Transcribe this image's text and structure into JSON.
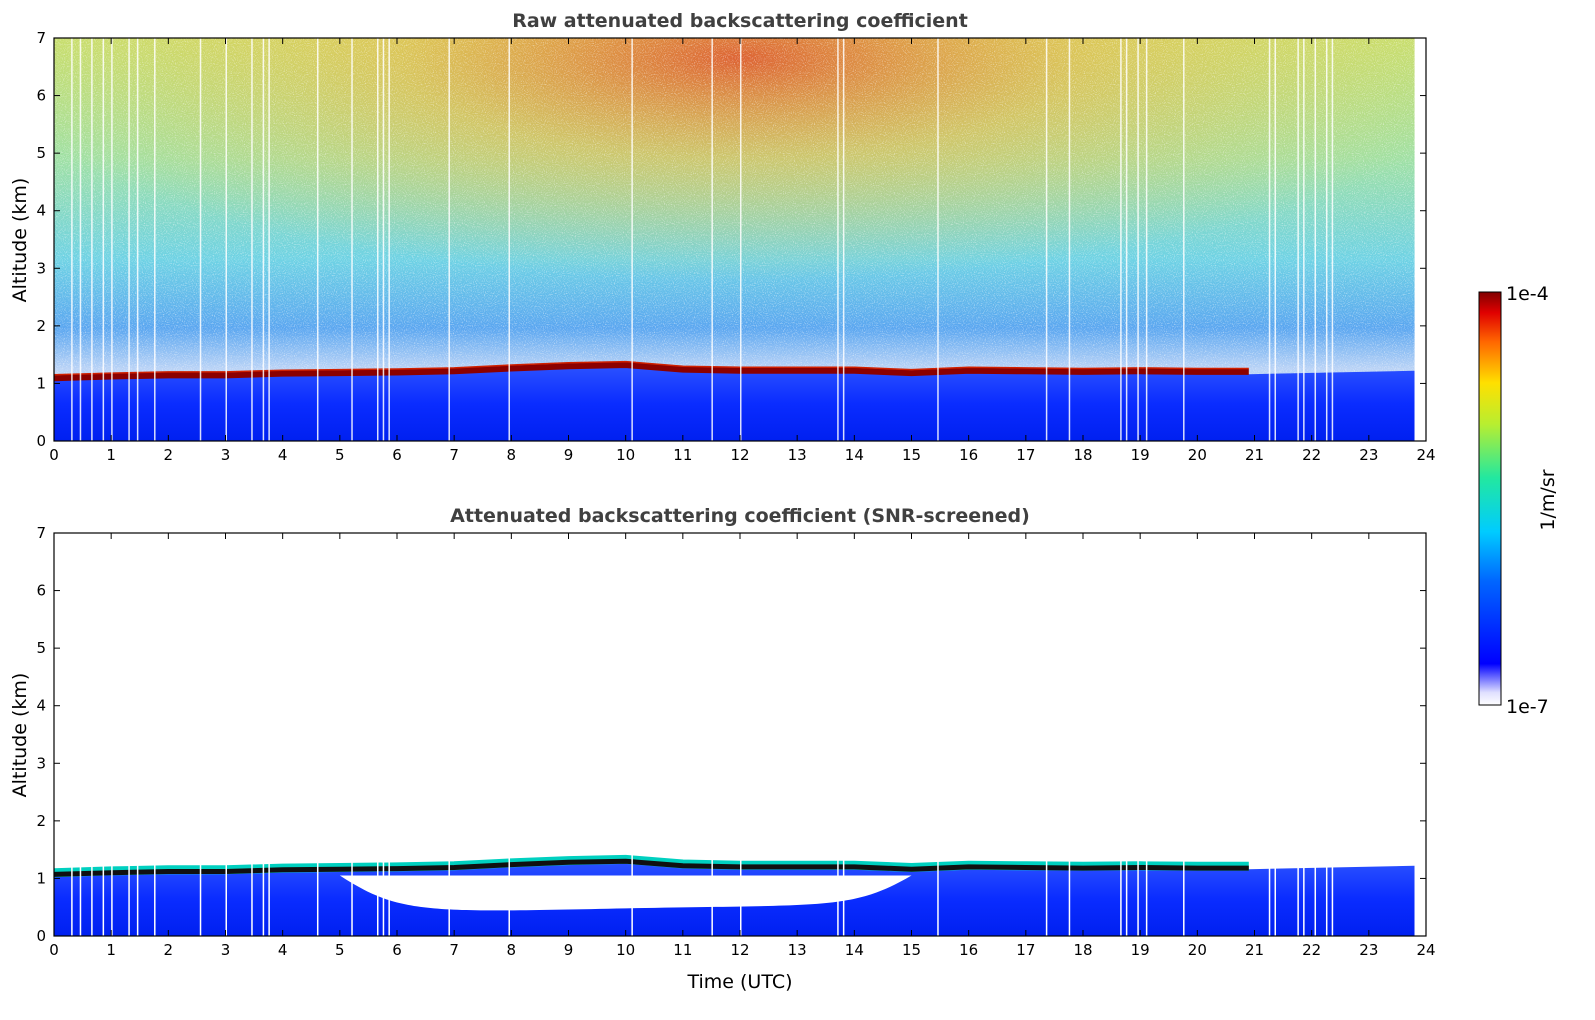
{
  "chart_data": [
    {
      "type": "heatmap",
      "title": "Raw attenuated backscattering coefficient",
      "xlabel": "",
      "ylabel": "Altitude (km)",
      "xlim": [
        0,
        24
      ],
      "ylim": [
        0,
        7
      ],
      "x_ticks": [
        "0",
        "1",
        "2",
        "3",
        "4",
        "5",
        "6",
        "7",
        "8",
        "9",
        "10",
        "11",
        "12",
        "13",
        "14",
        "15",
        "16",
        "17",
        "18",
        "19",
        "20",
        "21",
        "22",
        "23",
        "24"
      ],
      "y_ticks": [
        "0",
        "1",
        "2",
        "3",
        "4",
        "5",
        "6",
        "7"
      ],
      "data_end_time": 23.8,
      "cloud_layer_end_time": 20.9,
      "cloud_base_altitude_km": [
        [
          0,
          1.05
        ],
        [
          1,
          1.08
        ],
        [
          2,
          1.1
        ],
        [
          3,
          1.1
        ],
        [
          4,
          1.13
        ],
        [
          5,
          1.14
        ],
        [
          6,
          1.15
        ],
        [
          7,
          1.17
        ],
        [
          8,
          1.22
        ],
        [
          9,
          1.26
        ],
        [
          10,
          1.28
        ],
        [
          11,
          1.2
        ],
        [
          12,
          1.18
        ],
        [
          13,
          1.18
        ],
        [
          14,
          1.18
        ],
        [
          15,
          1.14
        ],
        [
          16,
          1.18
        ],
        [
          17,
          1.17
        ],
        [
          18,
          1.16
        ],
        [
          19,
          1.17
        ],
        [
          20,
          1.16
        ],
        [
          20.9,
          1.16
        ]
      ],
      "missing_profile_times": [
        0.3,
        0.45,
        0.65,
        0.85,
        1.0,
        1.3,
        1.45,
        1.75,
        2.55,
        3.0,
        3.45,
        3.65,
        3.75,
        4.6,
        5.2,
        5.65,
        5.75,
        5.85,
        6.9,
        7.95,
        10.1,
        11.5,
        12.0,
        13.7,
        13.8,
        15.45,
        17.35,
        17.75,
        18.65,
        18.75,
        18.95,
        19.1,
        19.75,
        21.25,
        21.35,
        21.75,
        21.85,
        22.05,
        22.25,
        22.35
      ],
      "colorbar_label": "1/m/sr",
      "colorbar_min_label": "1e-7",
      "colorbar_max_label": "1e-4",
      "colorscale": "jet",
      "scale": "log"
    },
    {
      "type": "heatmap",
      "title": "Attenuated backscattering coefficient (SNR-screened)",
      "xlabel": "Time (UTC)",
      "ylabel": "Altitude (km)",
      "xlim": [
        0,
        24
      ],
      "ylim": [
        0,
        7
      ],
      "x_ticks": [
        "0",
        "1",
        "2",
        "3",
        "4",
        "5",
        "6",
        "7",
        "8",
        "9",
        "10",
        "11",
        "12",
        "13",
        "14",
        "15",
        "16",
        "17",
        "18",
        "19",
        "20",
        "21",
        "22",
        "23",
        "24"
      ],
      "y_ticks": [
        "0",
        "1",
        "2",
        "3",
        "4",
        "5",
        "6",
        "7"
      ],
      "screened_gap_region": {
        "x_start": 5.0,
        "x_end": 15.0,
        "bottom_km": 0.55,
        "top_km": 1.05
      }
    }
  ]
}
